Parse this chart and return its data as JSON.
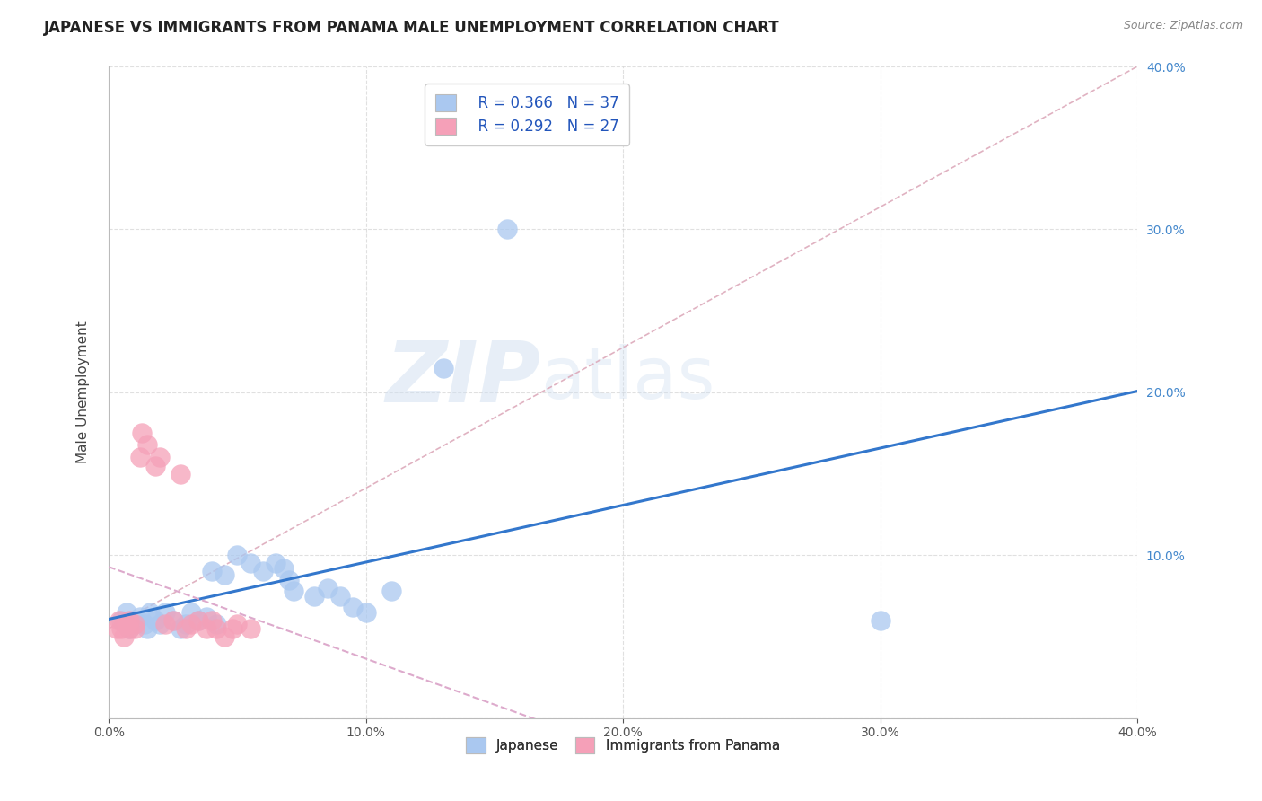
{
  "title": "JAPANESE VS IMMIGRANTS FROM PANAMA MALE UNEMPLOYMENT CORRELATION CHART",
  "source": "Source: ZipAtlas.com",
  "ylabel": "Male Unemployment",
  "xlim": [
    0.0,
    0.4
  ],
  "ylim": [
    0.0,
    0.4
  ],
  "xtick_vals": [
    0.0,
    0.1,
    0.2,
    0.3,
    0.4
  ],
  "ytick_vals": [
    0.0,
    0.1,
    0.2,
    0.3,
    0.4
  ],
  "grid_color": "#cccccc",
  "background_color": "#ffffff",
  "watermark_zip": "ZIP",
  "watermark_atlas": "atlas",
  "legend_R1": "R = 0.366",
  "legend_N1": "N = 37",
  "legend_R2": "R = 0.292",
  "legend_N2": "N = 27",
  "japanese_color": "#aac8f0",
  "panama_color": "#f5a0b8",
  "japanese_line_color": "#3377cc",
  "panama_line_color": "#dd4466",
  "diag_color": "#ddaacc",
  "right_tick_color": "#4488cc",
  "japanese_scatter": [
    [
      0.005,
      0.06
    ],
    [
      0.007,
      0.065
    ],
    [
      0.008,
      0.055
    ],
    [
      0.009,
      0.058
    ],
    [
      0.01,
      0.06
    ],
    [
      0.012,
      0.062
    ],
    [
      0.014,
      0.058
    ],
    [
      0.015,
      0.055
    ],
    [
      0.016,
      0.065
    ],
    [
      0.018,
      0.06
    ],
    [
      0.02,
      0.058
    ],
    [
      0.022,
      0.065
    ],
    [
      0.025,
      0.06
    ],
    [
      0.028,
      0.055
    ],
    [
      0.03,
      0.058
    ],
    [
      0.032,
      0.065
    ],
    [
      0.035,
      0.06
    ],
    [
      0.038,
      0.062
    ],
    [
      0.04,
      0.09
    ],
    [
      0.042,
      0.058
    ],
    [
      0.045,
      0.088
    ],
    [
      0.05,
      0.1
    ],
    [
      0.055,
      0.095
    ],
    [
      0.06,
      0.09
    ],
    [
      0.065,
      0.095
    ],
    [
      0.068,
      0.092
    ],
    [
      0.07,
      0.085
    ],
    [
      0.072,
      0.078
    ],
    [
      0.08,
      0.075
    ],
    [
      0.085,
      0.08
    ],
    [
      0.09,
      0.075
    ],
    [
      0.095,
      0.068
    ],
    [
      0.1,
      0.065
    ],
    [
      0.11,
      0.078
    ],
    [
      0.13,
      0.215
    ],
    [
      0.155,
      0.3
    ],
    [
      0.3,
      0.06
    ]
  ],
  "panama_scatter": [
    [
      0.003,
      0.055
    ],
    [
      0.004,
      0.06
    ],
    [
      0.005,
      0.055
    ],
    [
      0.006,
      0.05
    ],
    [
      0.007,
      0.058
    ],
    [
      0.008,
      0.06
    ],
    [
      0.008,
      0.055
    ],
    [
      0.01,
      0.058
    ],
    [
      0.01,
      0.055
    ],
    [
      0.012,
      0.16
    ],
    [
      0.013,
      0.175
    ],
    [
      0.015,
      0.168
    ],
    [
      0.018,
      0.155
    ],
    [
      0.02,
      0.16
    ],
    [
      0.022,
      0.058
    ],
    [
      0.025,
      0.06
    ],
    [
      0.028,
      0.15
    ],
    [
      0.03,
      0.055
    ],
    [
      0.032,
      0.058
    ],
    [
      0.035,
      0.06
    ],
    [
      0.038,
      0.055
    ],
    [
      0.04,
      0.06
    ],
    [
      0.042,
      0.055
    ],
    [
      0.045,
      0.05
    ],
    [
      0.048,
      0.055
    ],
    [
      0.05,
      0.058
    ],
    [
      0.055,
      0.055
    ]
  ],
  "title_fontsize": 12,
  "axis_label_fontsize": 11,
  "tick_fontsize": 10,
  "legend_fontsize": 11
}
